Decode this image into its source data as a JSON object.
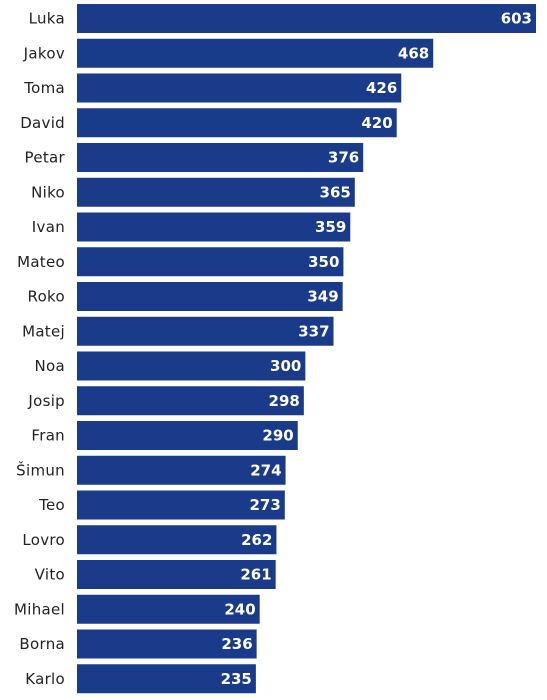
{
  "chart_data": {
    "type": "bar",
    "orientation": "horizontal",
    "categories": [
      "Luka",
      "Jakov",
      "Toma",
      "David",
      "Petar",
      "Niko",
      "Ivan",
      "Mateo",
      "Roko",
      "Matej",
      "Noa",
      "Josip",
      "Fran",
      "Šimun",
      "Teo",
      "Lovro",
      "Vito",
      "Mihael",
      "Borna",
      "Karlo"
    ],
    "values": [
      603,
      468,
      426,
      420,
      376,
      365,
      359,
      350,
      349,
      337,
      300,
      298,
      290,
      274,
      273,
      262,
      261,
      240,
      236,
      235
    ],
    "title": "",
    "xlabel": "",
    "ylabel": "",
    "xlim": [
      0,
      603
    ],
    "grid": false,
    "data_labels": "inside-end",
    "bar_color": "#1a3a8a",
    "label_color": "#ffffff"
  }
}
